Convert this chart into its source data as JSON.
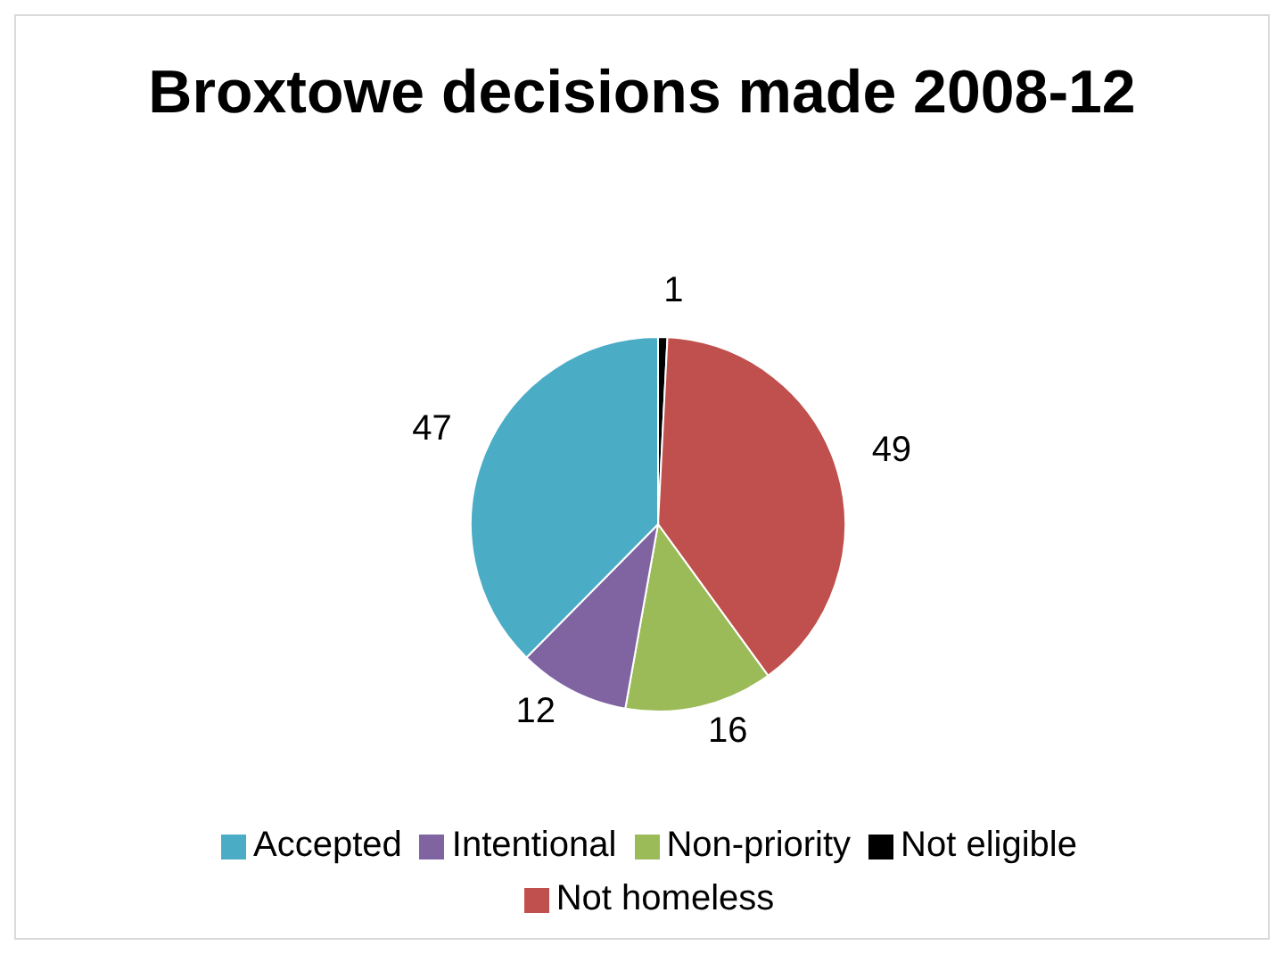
{
  "chart_data": {
    "type": "pie",
    "title": "Broxtowe decisions made 2008-12",
    "categories": [
      "Not eligible",
      "Not homeless",
      "Non-priority",
      "Intentional",
      "Accepted"
    ],
    "values": [
      1,
      49,
      16,
      12,
      47
    ],
    "colors": [
      "#000000",
      "#c0504d",
      "#9bbb59",
      "#8064a2",
      "#4bacc6"
    ],
    "data_labels": true,
    "legend": "bottom"
  }
}
